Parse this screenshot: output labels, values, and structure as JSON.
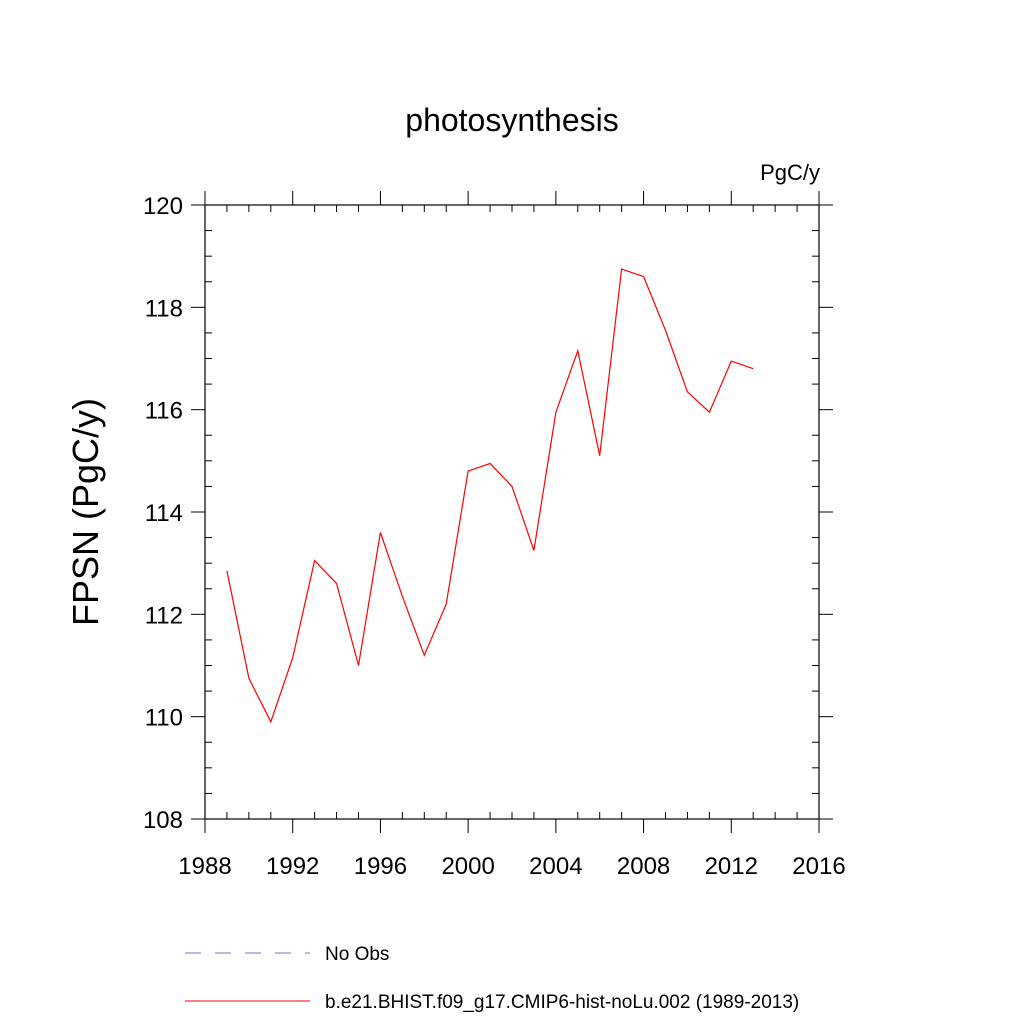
{
  "chart_data": {
    "type": "line",
    "title": "photosynthesis",
    "units_label": "PgC/y",
    "ylabel": "FPSN  (PgC/y)",
    "xlabel": "",
    "xlim": [
      1988,
      2016
    ],
    "ylim": [
      108,
      120
    ],
    "x_ticks": [
      1988,
      1992,
      1996,
      2000,
      2004,
      2008,
      2012,
      2016
    ],
    "y_ticks": [
      108,
      110,
      112,
      114,
      116,
      118,
      120
    ],
    "grid": false,
    "legend_position": "bottom",
    "series": [
      {
        "name": "b.e21.BHIST.f09_g17.CMIP6-hist-noLu.002 (1989-2013)",
        "color": "#ff0000",
        "style": "solid",
        "x": [
          1989,
          1990,
          1991,
          1992,
          1993,
          1994,
          1995,
          1996,
          1997,
          1998,
          1999,
          2000,
          2001,
          2002,
          2003,
          2004,
          2005,
          2006,
          2007,
          2008,
          2009,
          2010,
          2011,
          2012,
          2013
        ],
        "y": [
          112.85,
          110.75,
          109.9,
          111.15,
          113.05,
          112.6,
          111.0,
          113.6,
          112.35,
          111.2,
          112.2,
          114.8,
          114.95,
          114.5,
          113.25,
          115.95,
          117.15,
          115.1,
          118.75,
          118.6,
          117.55,
          116.35,
          115.95,
          116.95,
          116.8
        ]
      }
    ],
    "legend": [
      {
        "label": "No Obs",
        "color": "#7b6fd0",
        "style": "dashed"
      },
      {
        "label": "b.e21.BHIST.f09_g17.CMIP6-hist-noLu.002 (1989-2013)",
        "color": "#ff0000",
        "style": "solid"
      }
    ]
  }
}
